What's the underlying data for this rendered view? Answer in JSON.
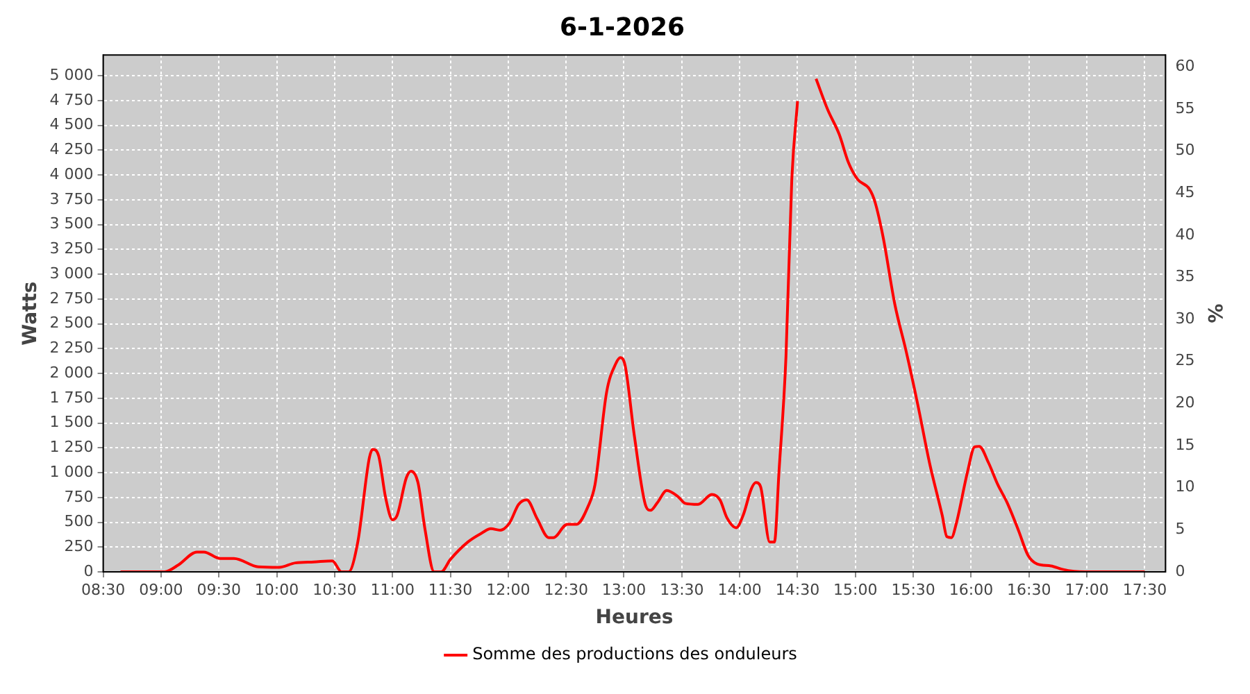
{
  "chart_data": {
    "type": "line",
    "title": "6-1-2026",
    "xlabel": "Heures",
    "ylabel": "Watts",
    "y2label": "%",
    "series": [
      {
        "name": "Somme des productions des onduleurs",
        "color": "#ff0000",
        "x": [
          8.65,
          9.03,
          9.15,
          9.31,
          9.37,
          9.51,
          9.63,
          9.84,
          10.02,
          10.16,
          10.32,
          10.48,
          10.56,
          10.62,
          10.7,
          10.8,
          10.83,
          10.88,
          10.94,
          11.0,
          11.04,
          11.12,
          11.16,
          11.22,
          11.28,
          11.36,
          11.42,
          11.5,
          11.65,
          11.77,
          11.85,
          11.93,
          12.01,
          12.09,
          12.16,
          12.25,
          12.35,
          12.39,
          12.51,
          12.59,
          12.69,
          12.75,
          12.85,
          12.93,
          12.97,
          13.01,
          13.09,
          13.19,
          13.23,
          13.29,
          13.37,
          13.47,
          13.53,
          13.64,
          13.76,
          13.83,
          13.89,
          13.97,
          14.03,
          14.1,
          14.14,
          14.18,
          14.26,
          14.3,
          14.34,
          14.4,
          14.45,
          14.5,
          14.55,
          14.6,
          14.66,
          14.76,
          14.86,
          14.94,
          15.02,
          15.12,
          15.17,
          15.24,
          15.34,
          15.44,
          15.54,
          15.64,
          15.75,
          15.79,
          15.83,
          15.87,
          15.97,
          16.03,
          16.07,
          16.15,
          16.23,
          16.31,
          16.41,
          16.49,
          16.57,
          16.69,
          16.79,
          16.89,
          16.99,
          17.5
        ],
        "values": [
          0,
          0,
          70,
          200,
          200,
          135,
          135,
          50,
          45,
          90,
          100,
          110,
          0,
          0,
          300,
          1150,
          1235,
          1170,
          750,
          525,
          570,
          950,
          1015,
          900,
          435,
          0,
          0,
          125,
          300,
          390,
          435,
          420,
          490,
          680,
          725,
          535,
          345,
          345,
          480,
          480,
          660,
          880,
          1810,
          2100,
          2160,
          2080,
          1370,
          660,
          620,
          700,
          820,
          755,
          690,
          680,
          780,
          725,
          545,
          445,
          570,
          835,
          900,
          860,
          300,
          300,
          1015,
          2170,
          3945,
          4745,
          null,
          null,
          4970,
          4660,
          4410,
          4125,
          3955,
          3860,
          3725,
          3370,
          2700,
          2215,
          1680,
          1100,
          570,
          355,
          345,
          480,
          1015,
          1260,
          1265,
          1100,
          880,
          700,
          415,
          170,
          80,
          60,
          25,
          5,
          0,
          0
        ]
      }
    ],
    "xlim": [
      8.5,
      17.68
    ],
    "xticks": [
      {
        "value": 8.5,
        "label": "08:30"
      },
      {
        "value": 9,
        "label": "09:00"
      },
      {
        "value": 9.5,
        "label": "09:30"
      },
      {
        "value": 10,
        "label": "10:00"
      },
      {
        "value": 10.5,
        "label": "10:30"
      },
      {
        "value": 11,
        "label": "11:00"
      },
      {
        "value": 11.5,
        "label": "11:30"
      },
      {
        "value": 12,
        "label": "12:00"
      },
      {
        "value": 12.5,
        "label": "12:30"
      },
      {
        "value": 13,
        "label": "13:00"
      },
      {
        "value": 13.5,
        "label": "13:30"
      },
      {
        "value": 14,
        "label": "14:00"
      },
      {
        "value": 14.5,
        "label": "14:30"
      },
      {
        "value": 15,
        "label": "15:00"
      },
      {
        "value": 15.5,
        "label": "15:30"
      },
      {
        "value": 16,
        "label": "16:00"
      },
      {
        "value": 16.5,
        "label": "16:30"
      },
      {
        "value": 17,
        "label": "17:00"
      },
      {
        "value": 17.5,
        "label": "17:30"
      }
    ],
    "ylim": [
      0,
      5210
    ],
    "yticks": [
      0,
      250,
      500,
      750,
      {
        "value": 1000,
        "label": "1 000"
      },
      {
        "value": 1250,
        "label": "1 250"
      },
      {
        "value": 1500,
        "label": "1 500"
      },
      {
        "value": 1750,
        "label": "1 750"
      },
      {
        "value": 2000,
        "label": "2 000"
      },
      {
        "value": 2250,
        "label": "2 250"
      },
      {
        "value": 2500,
        "label": "2 500"
      },
      {
        "value": 2750,
        "label": "2 750"
      },
      {
        "value": 3000,
        "label": "3 000"
      },
      {
        "value": 3250,
        "label": "3 250"
      },
      {
        "value": 3500,
        "label": "3 500"
      },
      {
        "value": 3750,
        "label": "3 750"
      },
      {
        "value": 4000,
        "label": "4 000"
      },
      {
        "value": 4250,
        "label": "4 250"
      },
      {
        "value": 4500,
        "label": "4 500"
      },
      {
        "value": 4750,
        "label": "4 750"
      },
      {
        "value": 5000,
        "label": "5 000"
      }
    ],
    "y2lim": [
      0,
      61.4
    ],
    "y2ticks": [
      0,
      5,
      10,
      15,
      20,
      25,
      30,
      35,
      40,
      45,
      50,
      55,
      60
    ],
    "grid": true,
    "legend": "bottom",
    "marker": "none",
    "line_style": "solid"
  }
}
